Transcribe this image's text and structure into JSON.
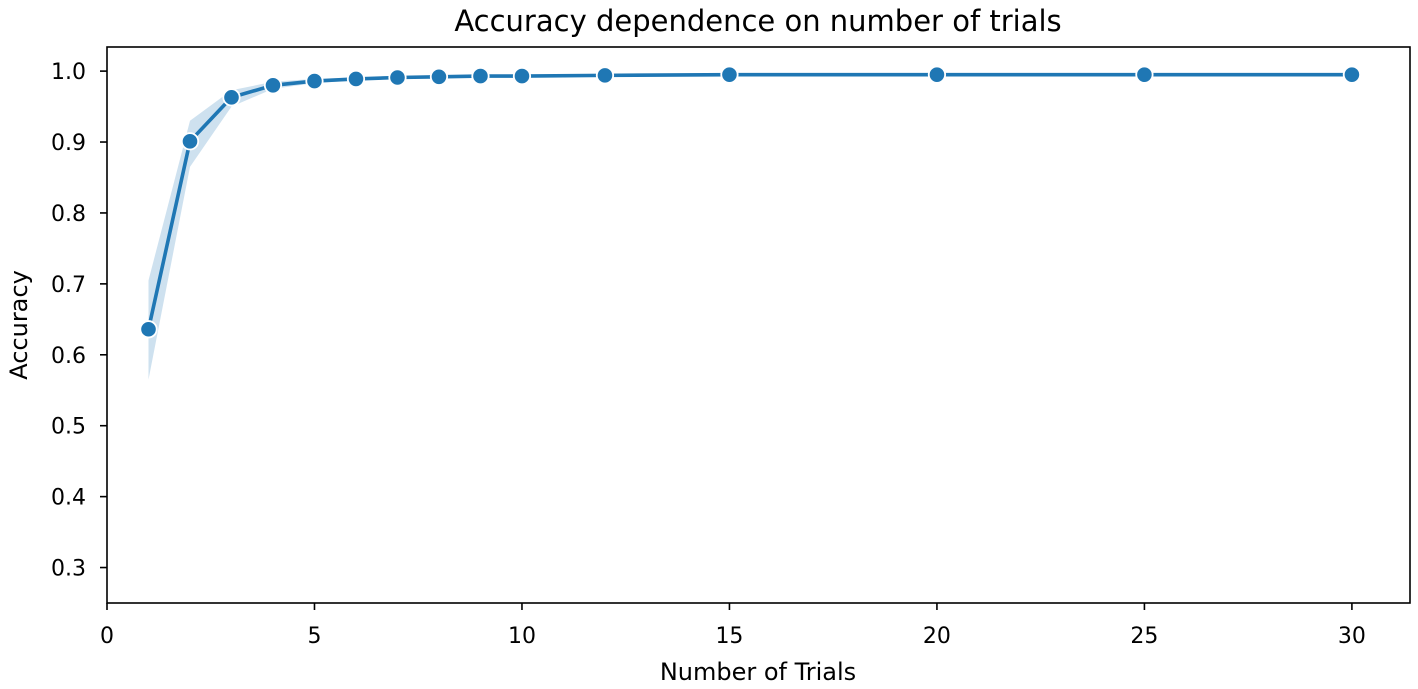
{
  "chart_data": {
    "type": "line",
    "title": "Accuracy dependence on number of trials",
    "xlabel": "Number of Trials",
    "ylabel": "Accuracy",
    "xlim": [
      0,
      31.4
    ],
    "ylim": [
      0.25,
      1.034
    ],
    "xticks": [
      0,
      5,
      10,
      15,
      20,
      25,
      30
    ],
    "yticks": [
      0.3,
      0.4,
      0.5,
      0.6,
      0.7,
      0.8,
      0.9,
      1.0
    ],
    "xtick_labels": [
      "0",
      "5",
      "10",
      "15",
      "20",
      "25",
      "30"
    ],
    "ytick_labels": [
      "0.3",
      "0.4",
      "0.5",
      "0.6",
      "0.7",
      "0.8",
      "0.9",
      "1.0"
    ],
    "grid": false,
    "legend": false,
    "colors": {
      "line": "#1f77b4",
      "band": "#1f77b4",
      "marker_edge": "#ffffff"
    },
    "series": [
      {
        "x": [
          1,
          2,
          3,
          4,
          5,
          6,
          7,
          8,
          9,
          10,
          12,
          15,
          20,
          25,
          30
        ],
        "values": [
          0.636,
          0.901,
          0.963,
          0.98,
          0.986,
          0.989,
          0.991,
          0.992,
          0.993,
          0.993,
          0.994,
          0.995,
          0.995,
          0.995,
          0.995
        ],
        "ci_lower": [
          0.565,
          0.865,
          0.95,
          0.975,
          0.983,
          0.987,
          0.989,
          0.99,
          0.991,
          0.992,
          0.993,
          0.994,
          0.994,
          0.994,
          0.994
        ],
        "ci_upper": [
          0.705,
          0.93,
          0.973,
          0.985,
          0.989,
          0.991,
          0.992,
          0.993,
          0.994,
          0.994,
          0.995,
          0.996,
          0.996,
          0.996,
          0.996
        ]
      }
    ]
  }
}
